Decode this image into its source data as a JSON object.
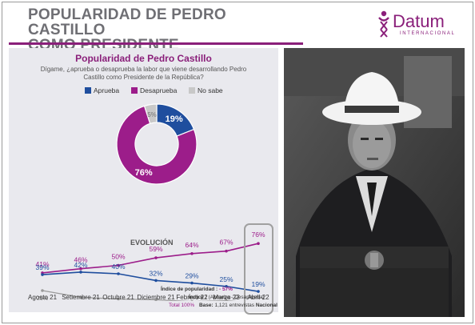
{
  "header": {
    "title_line1": "POPULARIDAD DE PEDRO CASTILLO",
    "title_line2": "COMO PRESIDENTE",
    "brand_name": "Datum",
    "brand_sub": "INTERNACIONAL",
    "accent_color": "#8a1f7a"
  },
  "panel": {
    "title": "Popularidad de Pedro Castillo",
    "question": "Dígame, ¿aprueba o desaprueba la labor que viene desarrollando Pedro Castillo como Presidente de la República?",
    "evolution_label": "EVOLUCIÓN"
  },
  "footer": {
    "index_label": "Índice de popularidad :",
    "index_value": "- 57%",
    "formula_label": "Índice :",
    "formula_value": "(Aprueba - Desaprueba)",
    "total": "Total 100%",
    "base_label": "Base:",
    "base_value": "1,121 entrevistas",
    "base_scope": "Nacional"
  },
  "colors": {
    "aprueba": "#1f4e9e",
    "desaprueba": "#9c1d8a",
    "no_sabe": "#c8c8c8",
    "no_sabe_line": "#9a9a9a"
  },
  "chart_data": [
    {
      "type": "pie",
      "title": "Popularidad de Pedro Castillo",
      "labels": [
        "Aprueba",
        "Desaprueba",
        "No sabe"
      ],
      "values": [
        19,
        76,
        5
      ],
      "value_labels": [
        "19%",
        "76%",
        "5%"
      ],
      "donut": true,
      "legend": "top"
    },
    {
      "type": "line",
      "title": "EVOLUCIÓN",
      "categories": [
        "Agosto 21",
        "Setiembre 21",
        "Octubre 21",
        "Diciembre 21",
        "Febrero 22",
        "Marzo 22",
        "Abril 22"
      ],
      "series": [
        {
          "name": "Desaprueba",
          "values": [
            41,
            46,
            50,
            59,
            64,
            67,
            76
          ],
          "labels": [
            "41%",
            "46%",
            "50%",
            "59%",
            "64%",
            "67%",
            "76%"
          ]
        },
        {
          "name": "Aprueba",
          "values": [
            39,
            42,
            40,
            32,
            29,
            25,
            19
          ],
          "labels": [
            "39%",
            "42%",
            "40%",
            "32%",
            "29%",
            "25%",
            "19%"
          ]
        },
        {
          "name": "No sabe",
          "values": [
            20,
            12,
            10,
            9,
            7,
            8,
            5
          ],
          "labels": [
            "20%",
            "12%",
            "10%",
            "9%",
            "7%",
            "8%",
            "5%"
          ]
        }
      ],
      "highlight_category": "Abril 22",
      "grid": false
    }
  ]
}
